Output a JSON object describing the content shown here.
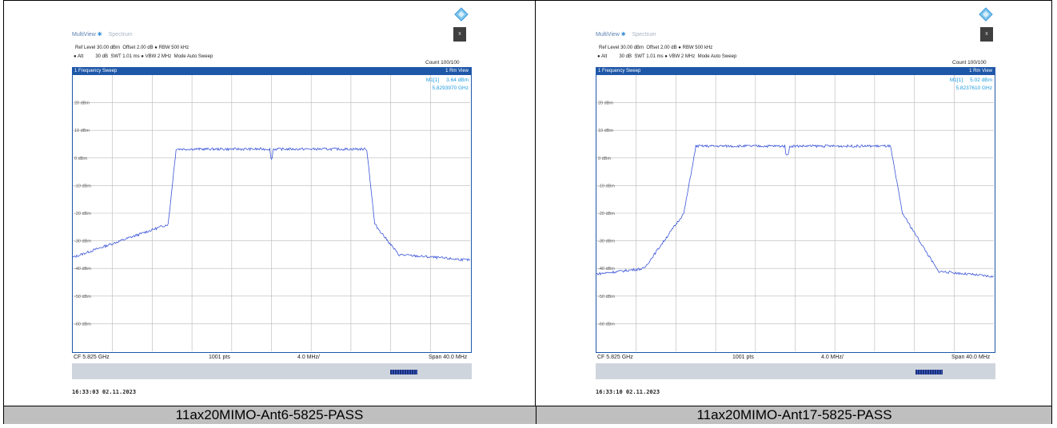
{
  "panels": [
    {
      "caption": "11ax20MIMO-Ant6-5825-PASS",
      "window": {
        "tab1": "MultiView",
        "tab2": "Spectrum"
      },
      "settings": {
        "ref_level": "Ref Level 30.00 dBm",
        "offset": "Offset 2.00 dB",
        "rbw": "RBW 500 kHz",
        "att": "Att",
        "att_val": "30 dB",
        "swt": "SWT 1.01 ms",
        "vbw": "VBW 2 MHz",
        "mode": "Mode Auto Sweep"
      },
      "count": "Count 100/100",
      "window_title": "1 Frequency Sweep",
      "trace_mode": "1 Rm View",
      "marker": {
        "label": "M1[1]",
        "level": "3.64 dBm",
        "freq": "5.8293970 GHz"
      },
      "y_ticks": [
        "20 dBm",
        "10 dBm",
        "0 dBm",
        "-10 dBm",
        "-20 dBm",
        "-30 dBm",
        "-40 dBm",
        "-50 dBm",
        "-60 dBm"
      ],
      "cf": "CF 5.825 GHz",
      "pts": "1001 pts",
      "div": "4.0 MHz/",
      "span": "Span 40.0 MHz",
      "timestamp": "16:33:03  02.11.2023"
    },
    {
      "caption": "11ax20MIMO-Ant17-5825-PASS",
      "window": {
        "tab1": "MultiView",
        "tab2": "Spectrum"
      },
      "settings": {
        "ref_level": "Ref Level 30.00 dBm",
        "offset": "Offset 2.00 dB",
        "rbw": "RBW 500 kHz",
        "att": "Att",
        "att_val": "30 dB",
        "swt": "SWT 1.01 ms",
        "vbw": "VBW 2 MHz",
        "mode": "Mode Auto Sweep"
      },
      "count": "Count 100/100",
      "window_title": "1 Frequency Sweep",
      "trace_mode": "1 Rm View",
      "marker": {
        "label": "M1[1]",
        "level": "5.02 dBm",
        "freq": "5.8237610 GHz"
      },
      "y_ticks": [
        "20 dBm",
        "10 dBm",
        "0 dBm",
        "-10 dBm",
        "-20 dBm",
        "-30 dBm",
        "-40 dBm",
        "-50 dBm",
        "-60 dBm"
      ],
      "cf": "CF 5.825 GHz",
      "pts": "1001 pts",
      "div": "4.0 MHz/",
      "span": "Span 40.0 MHz",
      "timestamp": "16:33:10  02.11.2023"
    }
  ],
  "colors": {
    "trace": "#3b55d8",
    "frame": "#1f57a8",
    "marker": "#1e9be0",
    "caption_bg": "#bfbfbf"
  }
}
